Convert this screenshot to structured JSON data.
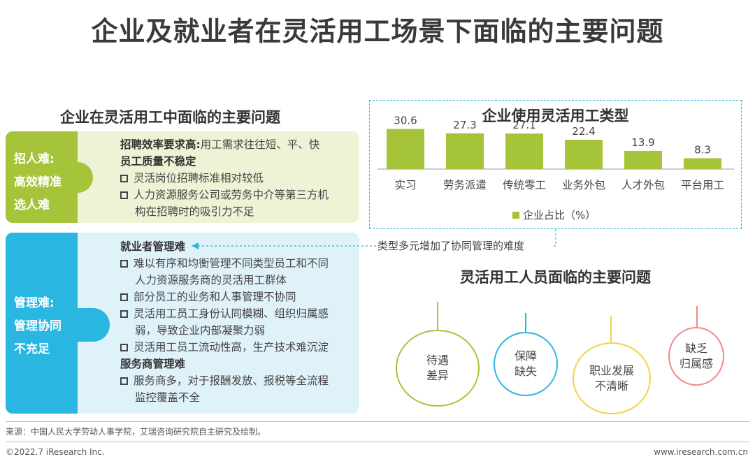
{
  "title": "企业及就业者在灵活用工场景下面临的主要问题",
  "left": {
    "title": "企业在灵活用工中面临的主要问题",
    "recruit": {
      "tab": [
        "招人难:",
        "高效精准",
        "选人难"
      ],
      "head_bold": "招聘效率要求高:",
      "head_rest": "用工需求往往短、平、快",
      "head_line2": "员工质量不稳定",
      "items": [
        "灵活岗位招聘标准相对较低",
        "人力资源服务公司或劳务中介等第三方机",
        "构在招聘时的吸引力不足"
      ]
    },
    "manage": {
      "tab": [
        "管理难:",
        "管理协同",
        "不充足"
      ],
      "head1": "就业者管理难",
      "items1": [
        [
          "难以有序和均衡管理不同类型员工和不同",
          "人力资源服务商的灵活用工群体"
        ],
        [
          "部分员工的业务和人事管理不协同"
        ],
        [
          "灵活用工员工身份认同模糊、组织归属感",
          "弱，导致企业内部凝聚力弱"
        ],
        [
          "灵活用工员工流动性高，生产技术难沉淀"
        ]
      ],
      "head2": "服务商管理难",
      "items2": [
        [
          "服务商多，对于报酬发放、报税等全流程",
          "监控覆盖不全"
        ]
      ]
    }
  },
  "chart": {
    "title": "企业使用灵活用工类型",
    "legend": "企业占比（%）",
    "annotation": "类型多元增加了协同管理的难度"
  },
  "chart_data": {
    "type": "bar",
    "title": "企业使用灵活用工类型",
    "categories": [
      "实习",
      "劳务派遣",
      "传统零工",
      "业务外包",
      "人才外包",
      "平台用工"
    ],
    "series": [
      {
        "name": "企业占比（%）",
        "values": [
          30.6,
          27.3,
          27.1,
          22.4,
          13.9,
          8.3
        ]
      }
    ],
    "value_labels": [
      "30.6",
      "27.3",
      "27.1",
      "22.4",
      "13.9",
      "8.3"
    ],
    "ylim": [
      0,
      32
    ],
    "color": "#a6c439",
    "legend_position": "bottom"
  },
  "worker": {
    "title": "灵活用工人员面临的主要问题",
    "circles": [
      {
        "lines": [
          "待遇",
          "差异"
        ],
        "color": "#a6c439"
      },
      {
        "lines": [
          "保障",
          "缺失"
        ],
        "color": "#29b6e0"
      },
      {
        "lines": [
          "职业发展",
          "不清晰"
        ],
        "color": "#f2d24a"
      },
      {
        "lines": [
          "缺乏",
          "归属感"
        ],
        "color": "#f08a8a"
      }
    ]
  },
  "source": "来源：中国人民大学劳动人事学院，艾瑞咨询研究院自主研究及绘制。",
  "footer": {
    "left": "©2022.7 iResearch Inc.",
    "right": "www.iresearch.com.cn"
  },
  "colors": {
    "green": "#a6c439",
    "green_light": "#eef3d6",
    "blue": "#29b6e0",
    "blue_light": "#dff1f9"
  }
}
